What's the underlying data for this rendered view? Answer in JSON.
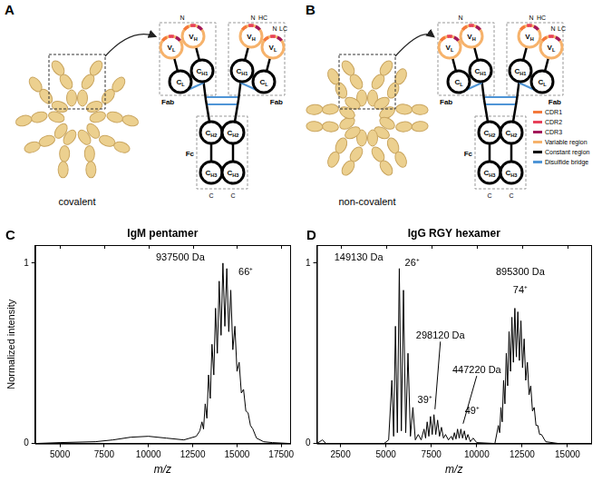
{
  "diagrams": [
    {
      "label": "A",
      "caption": "covalent",
      "units": 5,
      "inset": {
        "n_terminus": "N",
        "c_terminus": "C",
        "heavy_chain": "HC",
        "light_chain": "LC",
        "fab": "Fab",
        "fc": "Fc",
        "domains": [
          "VH",
          "VL",
          "CH1",
          "CL",
          "CH2",
          "CH3"
        ]
      }
    },
    {
      "label": "B",
      "caption": "non-covalent",
      "units": 6,
      "inset": {
        "n_terminus": "N",
        "c_terminus": "C",
        "heavy_chain": "HC",
        "light_chain": "LC",
        "fab": "Fab",
        "fc": "Fc",
        "domains": [
          "VH",
          "VL",
          "CH1",
          "CL",
          "CH2",
          "CH3"
        ]
      },
      "legend": [
        {
          "text": "CDR1",
          "color": "#f4793b"
        },
        {
          "text": "CDR2",
          "color": "#e8415a"
        },
        {
          "text": "CDR3",
          "color": "#a3195b"
        },
        {
          "text": "Variable region",
          "color": "#f6b26b"
        },
        {
          "text": "Constant region",
          "color": "#000000"
        },
        {
          "text": "Disulfide bridge",
          "color": "#4f95d6"
        }
      ]
    }
  ],
  "chart_data": [
    {
      "type": "line",
      "title": "C",
      "subtitle": "IgM pentamer",
      "color": "#000000",
      "grid": false,
      "x_label": "m/z",
      "y_label": "Normalized intensity",
      "x": [
        3600,
        5000,
        7000,
        8000,
        9000,
        10000,
        11000,
        12000,
        12700,
        12900,
        13022,
        13110,
        13205,
        13300,
        13394,
        13490,
        13588,
        13690,
        13788,
        13890,
        13994,
        14100,
        14205,
        14315,
        14424,
        14535,
        14649,
        14765,
        14882,
        15000,
        15122,
        15245,
        15370,
        15500,
        15626,
        15760,
        15897,
        16100,
        16500,
        17000,
        18000
      ],
      "values": [
        0,
        0.005,
        0.01,
        0.02,
        0.035,
        0.04,
        0.03,
        0.02,
        0.04,
        0.07,
        0.12,
        0.08,
        0.22,
        0.14,
        0.38,
        0.25,
        0.55,
        0.38,
        0.75,
        0.5,
        0.9,
        0.6,
        1.0,
        0.65,
        0.97,
        0.62,
        0.85,
        0.52,
        0.65,
        0.4,
        0.45,
        0.28,
        0.3,
        0.18,
        0.17,
        0.1,
        0.08,
        0.03,
        0.01,
        0.005,
        0
      ],
      "xlim": [
        3600,
        18000
      ],
      "xticks": [
        5000,
        7500,
        10000,
        12500,
        15000,
        17500
      ],
      "ylim": [
        0,
        1.1
      ],
      "yticks": [
        0,
        1
      ],
      "annotations": [
        {
          "text": "937500 Da",
          "x": 11800,
          "y": 1.0
        },
        {
          "text": "66⁺",
          "x": 15500,
          "y": 0.92
        }
      ]
    },
    {
      "type": "line",
      "title": "D",
      "subtitle": "IgG RGY hexamer",
      "color": "#000000",
      "grid": false,
      "x_label": "m/z",
      "x": [
        1200,
        1500,
        1700,
        4900,
        5150,
        5327,
        5425,
        5524,
        5630,
        5737,
        5850,
        5966,
        6090,
        6215,
        6350,
        6485,
        6620,
        6780,
        6940,
        7099,
        7185,
        7272,
        7363,
        7454,
        7550,
        7645,
        7745,
        7846,
        7950,
        8058,
        8170,
        8282,
        8440,
        8601,
        8685,
        8770,
        8858,
        8945,
        9036,
        9128,
        9220,
        9318,
        9417,
        9516,
        9650,
        9800,
        10000,
        11000,
        11192,
        11263,
        11334,
        11406,
        11479,
        11553,
        11628,
        11704,
        11781,
        11860,
        11938,
        12019,
        12100,
        12182,
        12265,
        12350,
        12436,
        12523,
        12611,
        12700,
        12791,
        12883,
        12976,
        13071,
        13167,
        13265,
        13364,
        13465,
        13566,
        13800,
        14500,
        16300
      ],
      "values": [
        0,
        0.02,
        0,
        0,
        0.02,
        0.35,
        0.04,
        0.65,
        0.06,
        0.97,
        0.07,
        0.85,
        0.06,
        0.5,
        0.04,
        0.2,
        0.02,
        0.05,
        0.02,
        0.08,
        0.03,
        0.12,
        0.04,
        0.15,
        0.05,
        0.16,
        0.05,
        0.13,
        0.04,
        0.09,
        0.03,
        0.05,
        0.02,
        0.04,
        0.02,
        0.06,
        0.025,
        0.08,
        0.03,
        0.08,
        0.03,
        0.07,
        0.02,
        0.05,
        0.01,
        0.03,
        0.005,
        0,
        0.1,
        0.06,
        0.2,
        0.12,
        0.35,
        0.22,
        0.5,
        0.32,
        0.62,
        0.4,
        0.7,
        0.45,
        0.75,
        0.48,
        0.73,
        0.46,
        0.68,
        0.42,
        0.58,
        0.35,
        0.45,
        0.27,
        0.32,
        0.18,
        0.2,
        0.1,
        0.1,
        0.05,
        0.05,
        0.01,
        0,
        0
      ],
      "xlim": [
        1200,
        16300
      ],
      "xticks": [
        2500,
        5000,
        7500,
        10000,
        12500,
        15000
      ],
      "ylim": [
        0,
        1.1
      ],
      "yticks": [
        0,
        1
      ],
      "annotations": [
        {
          "text": "149130 Da",
          "x": 3500,
          "y": 1.0
        },
        {
          "text": "26⁺",
          "x": 6450,
          "y": 0.97
        },
        {
          "text": "298120 Da",
          "x": 8000,
          "y": 0.57,
          "line_to": [
            7700,
            0.19
          ]
        },
        {
          "text": "39⁺",
          "x": 7150,
          "y": 0.21
        },
        {
          "text": "447220 Da",
          "x": 10000,
          "y": 0.38,
          "line_to": [
            9250,
            0.11
          ]
        },
        {
          "text": "49⁺",
          "x": 9750,
          "y": 0.15
        },
        {
          "text": "895300 Da",
          "x": 12400,
          "y": 0.92
        },
        {
          "text": "74⁺",
          "x": 12400,
          "y": 0.82
        }
      ]
    }
  ]
}
